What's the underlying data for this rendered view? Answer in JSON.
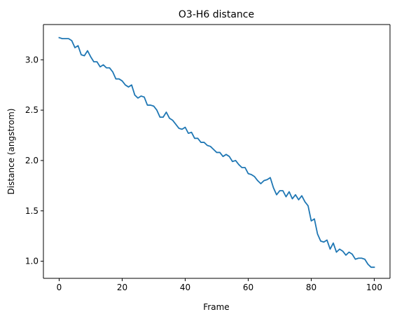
{
  "chart_data": {
    "type": "line",
    "title": "O3-H6 distance",
    "xlabel": "Frame",
    "ylabel": "Distance (angstrom)",
    "xlim": [
      -5,
      105
    ],
    "ylim": [
      0.83,
      3.35
    ],
    "xticks": [
      0,
      20,
      40,
      60,
      80,
      100
    ],
    "xtick_labels": [
      "0",
      "20",
      "40",
      "60",
      "80",
      "100"
    ],
    "yticks": [
      1.0,
      1.5,
      2.0,
      2.5,
      3.0
    ],
    "ytick_labels": [
      "1.0",
      "1.5",
      "2.0",
      "2.5",
      "3.0"
    ],
    "grid": false,
    "legend": "none",
    "series": [
      {
        "color": "#1f77b4",
        "x": [
          0,
          1,
          2,
          3,
          4,
          5,
          6,
          7,
          8,
          9,
          10,
          11,
          12,
          13,
          14,
          15,
          16,
          17,
          18,
          19,
          20,
          21,
          22,
          23,
          24,
          25,
          26,
          27,
          28,
          29,
          30,
          31,
          32,
          33,
          34,
          35,
          36,
          37,
          38,
          39,
          40,
          41,
          42,
          43,
          44,
          45,
          46,
          47,
          48,
          49,
          50,
          51,
          52,
          53,
          54,
          55,
          56,
          57,
          58,
          59,
          60,
          61,
          62,
          63,
          64,
          65,
          66,
          67,
          68,
          69,
          70,
          71,
          72,
          73,
          74,
          75,
          76,
          77,
          78,
          79,
          80,
          81,
          82,
          83,
          84,
          85,
          86,
          87,
          88,
          89,
          90,
          91,
          92,
          93,
          94,
          95,
          96,
          97,
          98,
          99,
          100
        ],
        "values": [
          3.22,
          3.21,
          3.21,
          3.21,
          3.19,
          3.12,
          3.14,
          3.05,
          3.04,
          3.09,
          3.03,
          2.98,
          2.98,
          2.93,
          2.95,
          2.92,
          2.92,
          2.88,
          2.81,
          2.81,
          2.79,
          2.75,
          2.73,
          2.75,
          2.65,
          2.62,
          2.64,
          2.63,
          2.55,
          2.55,
          2.54,
          2.5,
          2.43,
          2.43,
          2.48,
          2.42,
          2.4,
          2.36,
          2.32,
          2.31,
          2.33,
          2.27,
          2.28,
          2.22,
          2.22,
          2.18,
          2.18,
          2.15,
          2.14,
          2.11,
          2.08,
          2.08,
          2.04,
          2.06,
          2.04,
          1.99,
          2.0,
          1.96,
          1.93,
          1.93,
          1.87,
          1.86,
          1.84,
          1.8,
          1.77,
          1.8,
          1.81,
          1.83,
          1.73,
          1.66,
          1.7,
          1.7,
          1.64,
          1.69,
          1.62,
          1.66,
          1.61,
          1.65,
          1.59,
          1.55,
          1.4,
          1.42,
          1.27,
          1.2,
          1.19,
          1.21,
          1.12,
          1.18,
          1.09,
          1.12,
          1.1,
          1.06,
          1.09,
          1.07,
          1.02,
          1.03,
          1.03,
          1.02,
          0.97,
          0.94,
          0.94
        ]
      }
    ]
  }
}
